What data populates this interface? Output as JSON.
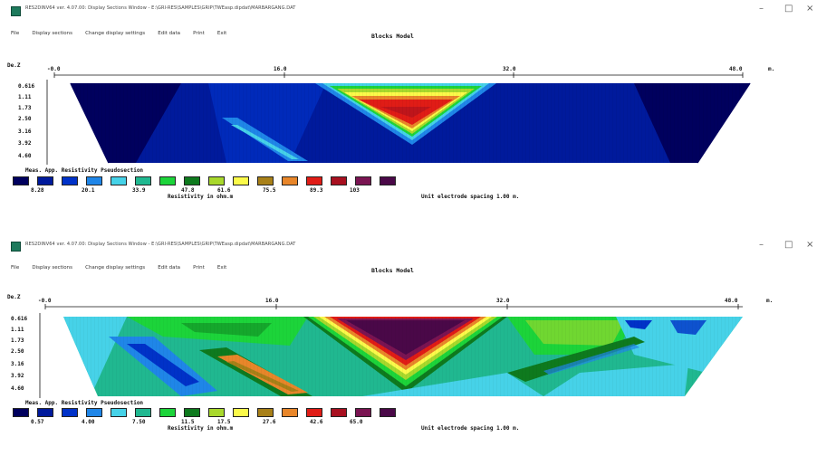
{
  "windows": [
    {
      "title": "RES2DINV64 ver. 4.07.00: Display Sections Window - E:\\GRI-RES\\SAMPLES\\GRIP\\TWEasp.dipdat\\MARBARGANG.DAT",
      "controls": {
        "minimize": "–",
        "maximize": "□",
        "close": "×"
      },
      "menu": [
        "File",
        "Display sections",
        "Change display settings",
        "Edit data",
        "Print",
        "Exit"
      ],
      "model_title": "Blocks Model",
      "depth_header": "De.Z",
      "x_ticks": [
        "-0.0",
        "16.0",
        "32.0",
        "48.0"
      ],
      "x_unit": "m.",
      "depths": [
        "0.616",
        "1.11",
        "1.73",
        "2.50",
        "3.16",
        "3.92",
        "4.60"
      ],
      "legend_title": "Meas. App. Resistivity Pseudosection",
      "contour_values": [
        "8.28",
        "20.1",
        "33.9",
        "47.8",
        "61.6",
        "75.5",
        "89.3",
        "103"
      ],
      "res_label": "Resistivity in ohm.m",
      "spacing_label": "Unit electrode spacing 1.00 m.",
      "colors": [
        "#00005e",
        "#001a9c",
        "#0032c8",
        "#1f86e8",
        "#46d2e8",
        "#20b890",
        "#1cd43a",
        "#0e7a1e",
        "#a8d82c",
        "#fbfa4a",
        "#a88018",
        "#e8862a",
        "#e01c16",
        "#a81020",
        "#7a1452",
        "#4a0848"
      ]
    },
    {
      "title": "RES2DINV64 ver. 4.07.00: Display Sections Window - E:\\GRI-RES\\SAMPLES\\GRIP\\TWEasp.dipdat\\MARBARGANG.DAT",
      "controls": {
        "minimize": "–",
        "maximize": "□",
        "close": "×"
      },
      "menu": [
        "File",
        "Display sections",
        "Change display settings",
        "Edit data",
        "Print",
        "Exit"
      ],
      "model_title": "Blocks Model",
      "depth_header": "De.Z",
      "x_ticks": [
        "-0.0",
        "16.0",
        "32.0",
        "48.0"
      ],
      "x_unit": "m.",
      "depths": [
        "0.616",
        "1.11",
        "1.73",
        "2.50",
        "3.16",
        "3.92",
        "4.60"
      ],
      "legend_title": "Meas. App. Resistivity Pseudosection",
      "contour_values": [
        "0.57",
        "4.00",
        "7.50",
        "11.5",
        "17.5",
        "27.6",
        "42.6",
        "65.0"
      ],
      "res_label": "Resistivity in ohm.m",
      "spacing_label": "Unit electrode spacing 1.00 m.",
      "colors": [
        "#00005e",
        "#001a9c",
        "#0032c8",
        "#1f86e8",
        "#46d2e8",
        "#20b890",
        "#1cd43a",
        "#0e7a1e",
        "#a8d82c",
        "#fbfa4a",
        "#a88018",
        "#e8862a",
        "#e01c16",
        "#a81020",
        "#7a1452",
        "#4a0848"
      ]
    }
  ]
}
